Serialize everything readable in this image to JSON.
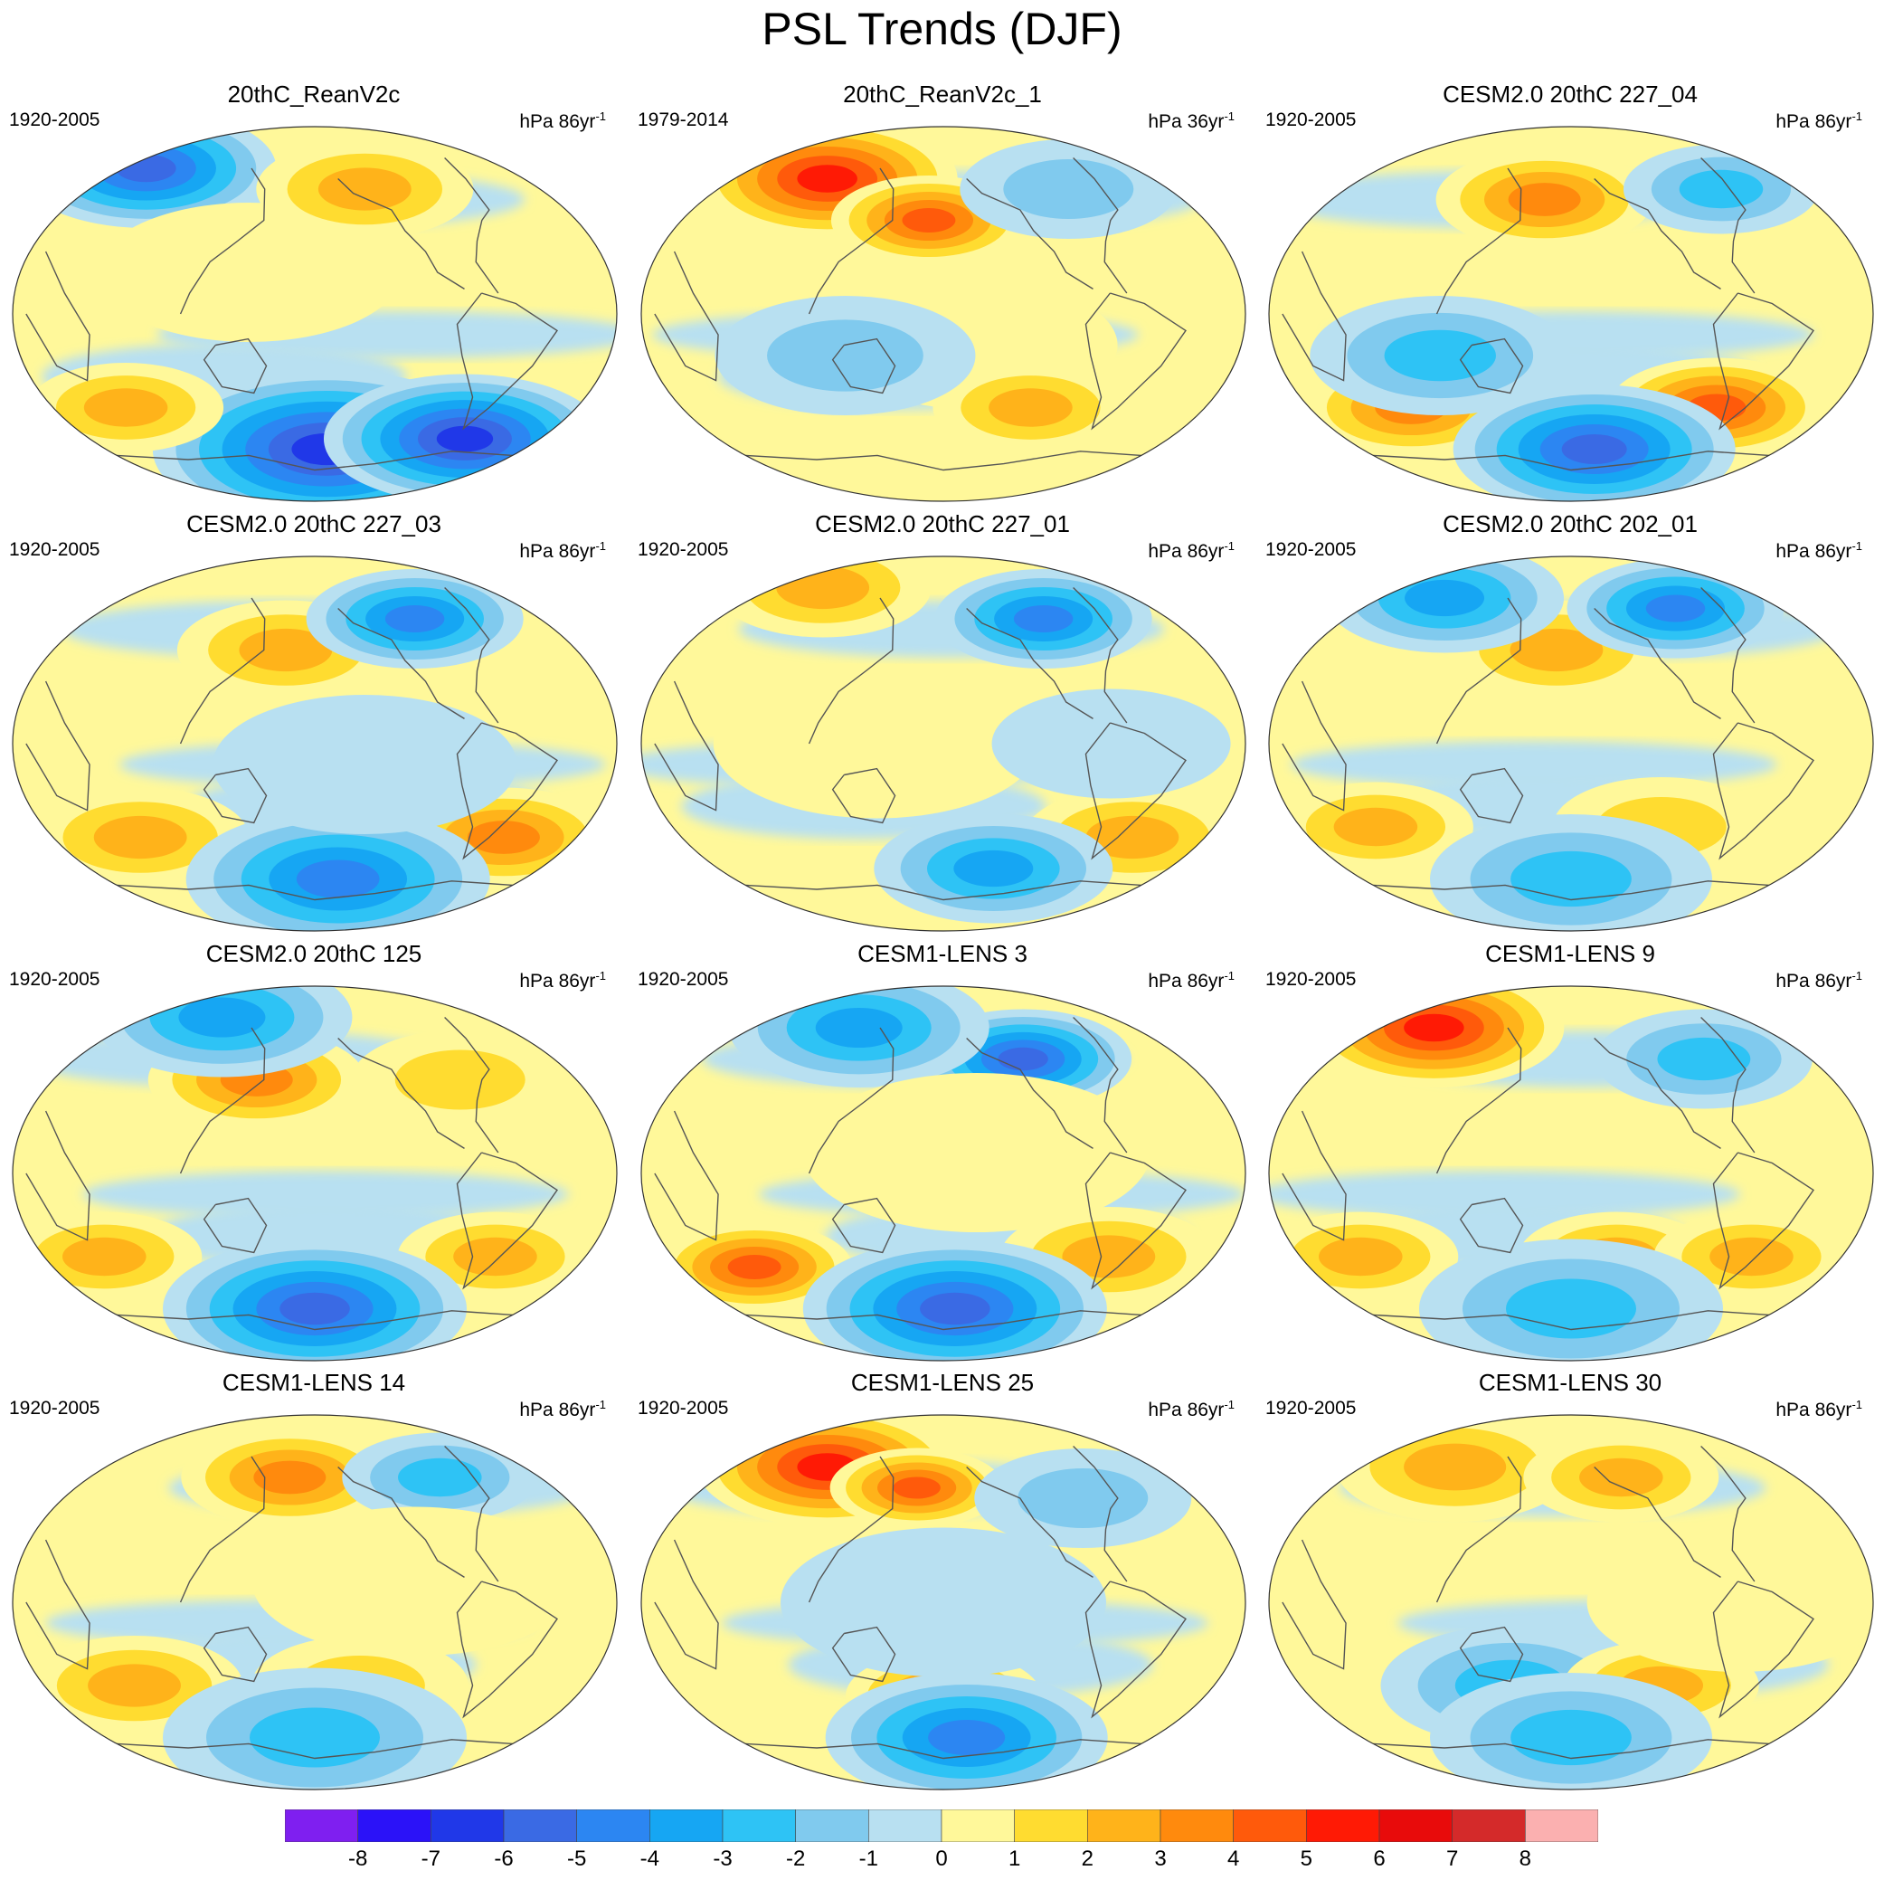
{
  "title": "PSL Trends (DJF)",
  "panels": [
    {
      "title": "20thC_ReanV2c",
      "period": "1920-2005",
      "units": "hPa 86yr",
      "units_sup": "-1",
      "pattern": [
        {
          "lon": -160,
          "lat": 70,
          "level": -6,
          "r": 1.2
        },
        {
          "lon": -40,
          "lat": 20,
          "level": 1,
          "r": 1.4
        },
        {
          "lon": 40,
          "lat": 60,
          "level": 3,
          "r": 1.0
        },
        {
          "lon": 10,
          "lat": -65,
          "level": -7,
          "r": 1.6
        },
        {
          "lon": -130,
          "lat": -45,
          "level": 3,
          "r": 0.9
        },
        {
          "lon": 120,
          "lat": -60,
          "level": -7,
          "r": 1.3
        }
      ]
    },
    {
      "title": "20thC_ReanV2c_1",
      "period": "1979-2014",
      "units": "hPa 36yr",
      "units_sup": "-1",
      "pattern": [
        {
          "lon": -100,
          "lat": 65,
          "level": 6,
          "r": 1.2
        },
        {
          "lon": -10,
          "lat": 45,
          "level": 5,
          "r": 0.9
        },
        {
          "lon": 20,
          "lat": -15,
          "level": 1,
          "r": 1.3
        },
        {
          "lon": 60,
          "lat": -45,
          "level": 3,
          "r": 0.9
        },
        {
          "lon": -60,
          "lat": -20,
          "level": -2,
          "r": 1.2
        },
        {
          "lon": 100,
          "lat": 60,
          "level": -2,
          "r": 1.0
        }
      ]
    },
    {
      "title": "CESM2.0 20thC 227_04",
      "period": "1920-2005",
      "units": "hPa 86yr",
      "units_sup": "-1",
      "pattern": [
        {
          "lon": -20,
          "lat": 55,
          "level": 4,
          "r": 1.0
        },
        {
          "lon": -110,
          "lat": -45,
          "level": 4,
          "r": 1.0
        },
        {
          "lon": 100,
          "lat": -45,
          "level": 5,
          "r": 1.0
        },
        {
          "lon": 20,
          "lat": -65,
          "level": -6,
          "r": 1.3
        },
        {
          "lon": -80,
          "lat": -20,
          "level": -3,
          "r": 1.2
        },
        {
          "lon": 120,
          "lat": 60,
          "level": -3,
          "r": 0.9
        }
      ]
    },
    {
      "title": "CESM2.0 20thC 227_03",
      "period": "1920-2005",
      "units": "hPa 86yr",
      "units_sup": "-1",
      "pattern": [
        {
          "lon": -20,
          "lat": 45,
          "level": 3,
          "r": 1.0
        },
        {
          "lon": 80,
          "lat": 60,
          "level": -5,
          "r": 1.0
        },
        {
          "lon": -120,
          "lat": -45,
          "level": 3,
          "r": 1.0
        },
        {
          "lon": 130,
          "lat": -45,
          "level": 4,
          "r": 1.0
        },
        {
          "lon": 20,
          "lat": -65,
          "level": -5,
          "r": 1.4
        },
        {
          "lon": 30,
          "lat": -10,
          "level": -1,
          "r": 1.4
        }
      ]
    },
    {
      "title": "CESM2.0 20thC 227_01",
      "period": "1920-2005",
      "units": "hPa 86yr",
      "units_sup": "-1",
      "pattern": [
        {
          "lon": 80,
          "lat": 60,
          "level": -5,
          "r": 1.0
        },
        {
          "lon": -130,
          "lat": 75,
          "level": 3,
          "r": 1.0
        },
        {
          "lon": 130,
          "lat": -45,
          "level": 3,
          "r": 1.0
        },
        {
          "lon": 40,
          "lat": -60,
          "level": -4,
          "r": 1.1
        },
        {
          "lon": -40,
          "lat": 0,
          "level": 1,
          "r": 1.5
        },
        {
          "lon": 100,
          "lat": 0,
          "level": -1,
          "r": 1.1
        }
      ]
    },
    {
      "title": "CESM2.0 20thC 202_01",
      "period": "1920-2005",
      "units": "hPa 86yr",
      "units_sup": "-1",
      "pattern": [
        {
          "lon": -10,
          "lat": 45,
          "level": 3,
          "r": 1.0
        },
        {
          "lon": 90,
          "lat": 65,
          "level": -5,
          "r": 1.0
        },
        {
          "lon": -120,
          "lat": 70,
          "level": -4,
          "r": 1.1
        },
        {
          "lon": -130,
          "lat": -40,
          "level": 3,
          "r": 0.9
        },
        {
          "lon": 60,
          "lat": -40,
          "level": 2,
          "r": 1.0
        },
        {
          "lon": 0,
          "lat": -65,
          "level": -3,
          "r": 1.3
        }
      ]
    },
    {
      "title": "CESM2.0 20thC 125",
      "period": "1920-2005",
      "units": "hPa 86yr",
      "units_sup": "-1",
      "pattern": [
        {
          "lon": -40,
          "lat": 45,
          "level": 4,
          "r": 1.0
        },
        {
          "lon": 100,
          "lat": 45,
          "level": 2,
          "r": 1.0
        },
        {
          "lon": -100,
          "lat": 75,
          "level": -4,
          "r": 1.2
        },
        {
          "lon": -140,
          "lat": -40,
          "level": 3,
          "r": 0.9
        },
        {
          "lon": 120,
          "lat": -40,
          "level": 3,
          "r": 0.9
        },
        {
          "lon": 0,
          "lat": -65,
          "level": -6,
          "r": 1.4
        }
      ]
    },
    {
      "title": "CESM1-LENS 3",
      "period": "1920-2005",
      "units": "hPa 86yr",
      "units_sup": "-1",
      "pattern": [
        {
          "lon": -130,
          "lat": -45,
          "level": 5,
          "r": 0.9
        },
        {
          "lon": 110,
          "lat": -40,
          "level": 3,
          "r": 1.0
        },
        {
          "lon": 60,
          "lat": 55,
          "level": -6,
          "r": 1.0
        },
        {
          "lon": -80,
          "lat": 70,
          "level": -4,
          "r": 1.2
        },
        {
          "lon": 10,
          "lat": -65,
          "level": -6,
          "r": 1.4
        },
        {
          "lon": 20,
          "lat": 10,
          "level": 1,
          "r": 1.6
        }
      ]
    },
    {
      "title": "CESM1-LENS 9",
      "period": "1920-2005",
      "units": "hPa 86yr",
      "units_sup": "-1",
      "pattern": [
        {
          "lon": -130,
          "lat": 70,
          "level": 6,
          "r": 1.2
        },
        {
          "lon": 100,
          "lat": 55,
          "level": -3,
          "r": 1.0
        },
        {
          "lon": -140,
          "lat": -40,
          "level": 3,
          "r": 0.9
        },
        {
          "lon": 30,
          "lat": -40,
          "level": 3,
          "r": 0.9
        },
        {
          "lon": 120,
          "lat": -40,
          "level": 3,
          "r": 0.9
        },
        {
          "lon": 0,
          "lat": -65,
          "level": -3,
          "r": 1.4
        }
      ]
    },
    {
      "title": "CESM1-LENS 14",
      "period": "1920-2005",
      "units": "hPa 86yr",
      "units_sup": "-1",
      "pattern": [
        {
          "lon": -20,
          "lat": 60,
          "level": 4,
          "r": 1.0
        },
        {
          "lon": 100,
          "lat": 60,
          "level": -3,
          "r": 0.9
        },
        {
          "lon": -120,
          "lat": -40,
          "level": 3,
          "r": 1.0
        },
        {
          "lon": 30,
          "lat": -40,
          "level": 2,
          "r": 1.0
        },
        {
          "lon": 0,
          "lat": -65,
          "level": -3,
          "r": 1.4
        },
        {
          "lon": 60,
          "lat": 10,
          "level": 1,
          "r": 1.5
        }
      ]
    },
    {
      "title": "CESM1-LENS 25",
      "period": "1920-2005",
      "units": "hPa 86yr",
      "units_sup": "-1",
      "pattern": [
        {
          "lon": -100,
          "lat": 65,
          "level": 6,
          "r": 1.2
        },
        {
          "lon": -20,
          "lat": 55,
          "level": 5,
          "r": 0.8
        },
        {
          "lon": 0,
          "lat": -45,
          "level": 4,
          "r": 0.9
        },
        {
          "lon": 20,
          "lat": -65,
          "level": -5,
          "r": 1.3
        },
        {
          "lon": 0,
          "lat": 0,
          "level": -1,
          "r": 1.5
        },
        {
          "lon": 100,
          "lat": 50,
          "level": -2,
          "r": 1.0
        }
      ]
    },
    {
      "title": "CESM1-LENS 30",
      "period": "1920-2005",
      "units": "hPa 86yr",
      "units_sup": "-1",
      "pattern": [
        {
          "lon": -100,
          "lat": 65,
          "level": 3,
          "r": 1.1
        },
        {
          "lon": 40,
          "lat": 60,
          "level": 3,
          "r": 0.9
        },
        {
          "lon": -40,
          "lat": -40,
          "level": -3,
          "r": 1.2
        },
        {
          "lon": 60,
          "lat": -40,
          "level": 3,
          "r": 0.9
        },
        {
          "lon": 0,
          "lat": -65,
          "level": -3,
          "r": 1.3
        },
        {
          "lon": 100,
          "lat": 0,
          "level": 1,
          "r": 1.4
        }
      ]
    }
  ],
  "colorbar": {
    "colors": [
      "#7f1ff0",
      "#2b12f8",
      "#2038e8",
      "#3a6ae4",
      "#2c86f2",
      "#16a6f3",
      "#2ec3f5",
      "#80caee",
      "#b8e0f1",
      "#fff89a",
      "#ffdc30",
      "#ffb31a",
      "#ff8a0d",
      "#ff5a0b",
      "#ff1a05",
      "#e80b0b",
      "#d42a2a",
      "#fbb0b0"
    ],
    "labels": [
      "-8",
      "-7",
      "-6",
      "-5",
      "-4",
      "-3",
      "-2",
      "-1",
      "0",
      "1",
      "2",
      "3",
      "4",
      "5",
      "6",
      "7",
      "8"
    ]
  },
  "coast_color": "#555555",
  "outline_color": "#333333"
}
